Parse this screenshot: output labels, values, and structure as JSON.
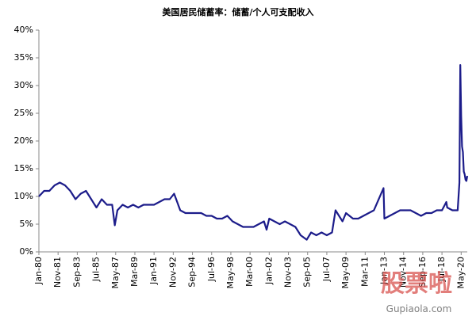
{
  "chart_data": {
    "type": "line",
    "title": "美国居民储蓄率：储蓄/个人可支配收入",
    "x": [
      "Jan-80",
      "Jul-80",
      "Jan-81",
      "Jul-81",
      "Jan-82",
      "Jul-82",
      "Jan-83",
      "Jul-83",
      "Jan-84",
      "Jul-84",
      "Jan-85",
      "Jul-85",
      "Jan-86",
      "Jul-86",
      "Jan-87",
      "Apr-87",
      "Jul-87",
      "Jan-88",
      "Jul-88",
      "Jan-89",
      "Jul-89",
      "Jan-90",
      "Jul-90",
      "Jan-91",
      "Jul-91",
      "Jan-92",
      "Jul-92",
      "Dec-92",
      "Jul-93",
      "Jan-94",
      "Jul-94",
      "Jan-95",
      "Jul-95",
      "Jan-96",
      "Jul-96",
      "Jan-97",
      "Jul-97",
      "Jan-98",
      "Jul-98",
      "Jan-99",
      "Jul-99",
      "Jan-00",
      "Jul-00",
      "Jan-01",
      "Jul-01",
      "Oct-01",
      "Jan-02",
      "Jul-02",
      "Jan-03",
      "Jul-03",
      "Jan-04",
      "Jul-04",
      "Jan-05",
      "Aug-05",
      "Jan-06",
      "Jul-06",
      "Jan-07",
      "Jul-07",
      "Jan-08",
      "May-08",
      "Jan-09",
      "May-09",
      "Jan-10",
      "Jul-10",
      "Jan-11",
      "Jul-11",
      "Jan-12",
      "Dec-12",
      "Jan-13",
      "Jul-13",
      "Jan-14",
      "Jul-14",
      "Jan-15",
      "Jul-15",
      "Jan-16",
      "Jul-16",
      "Jan-17",
      "Jul-17",
      "Jan-18",
      "Jul-18",
      "Dec-18",
      "Jan-19",
      "Jul-19",
      "Jan-20",
      "Mar-20",
      "Apr-20",
      "May-20",
      "Jun-20",
      "Jul-20",
      "Aug-20",
      "Sep-20",
      "Oct-20",
      "Nov-20",
      "Dec-20"
    ],
    "series": [
      {
        "color": "#1c1c8a",
        "values": [
          10,
          11,
          11,
          12,
          12.5,
          12,
          11,
          9.5,
          10.5,
          11,
          9.5,
          8,
          9.5,
          8.5,
          8.5,
          4.8,
          7.5,
          8.5,
          8,
          8.5,
          8,
          8.5,
          8.5,
          8.5,
          9,
          9.5,
          9.5,
          10.5,
          7.5,
          7,
          7,
          7,
          7,
          6.5,
          6.5,
          6,
          6,
          6.5,
          5.5,
          5,
          4.5,
          4.5,
          4.5,
          5,
          5.5,
          4,
          6,
          5.5,
          5,
          5.5,
          5,
          4.5,
          3,
          2.2,
          3.5,
          3,
          3.5,
          3,
          3.5,
          7.5,
          5.5,
          7,
          6,
          6,
          6.5,
          7,
          7.5,
          11.5,
          6,
          6.5,
          7,
          7.5,
          7.5,
          7.5,
          7,
          6.5,
          7,
          7,
          7.5,
          7.5,
          9,
          8,
          7.5,
          7.5,
          12.5,
          33.7,
          24.5,
          19,
          18,
          14.5,
          14,
          13,
          12.8,
          13.7
        ]
      }
    ],
    "xticks": [
      "Jan-80",
      "Nov-81",
      "Sep-83",
      "Jul-85",
      "May-87",
      "Mar-89",
      "Jan-91",
      "Nov-92",
      "Sep-94",
      "Jul-96",
      "May-98",
      "Mar-00",
      "Jan-02",
      "Nov-03",
      "Sep-05",
      "Jul-07",
      "May-09",
      "Mar-11",
      "Jan-13",
      "Nov-14",
      "Sep-16",
      "Jul-18",
      "May-20"
    ],
    "ylim": [
      0,
      40
    ],
    "yticks": [
      {
        "value": 0,
        "label": "0%"
      },
      {
        "value": 5,
        "label": "5%"
      },
      {
        "value": 10,
        "label": "10%"
      },
      {
        "value": 15,
        "label": "15%"
      },
      {
        "value": 20,
        "label": "20%"
      },
      {
        "value": 25,
        "label": "25%"
      },
      {
        "value": 30,
        "label": "30%"
      },
      {
        "value": 35,
        "label": "35%"
      },
      {
        "value": 40,
        "label": "40%"
      }
    ],
    "watermark": [
      "股票啦",
      "Gupiaola.com"
    ]
  }
}
